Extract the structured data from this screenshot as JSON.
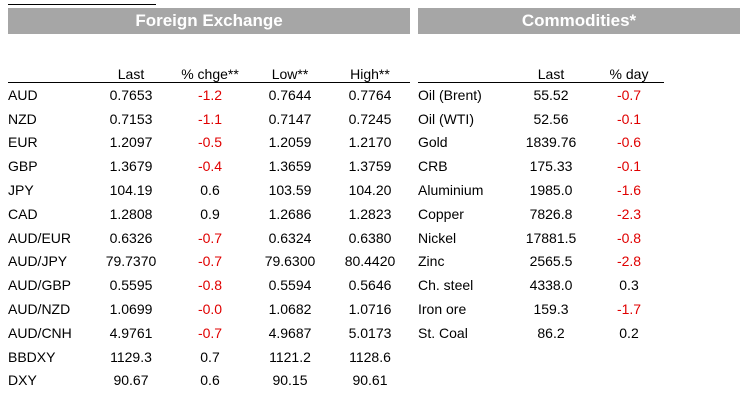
{
  "fx": {
    "title": "Foreign Exchange",
    "headers": [
      "Last",
      "% chge**",
      "Low**",
      "High**"
    ],
    "rows": [
      {
        "label": "AUD",
        "last": "0.7653",
        "chg": "-1.2",
        "low": "0.7644",
        "high": "0.7764"
      },
      {
        "label": "NZD",
        "last": "0.7153",
        "chg": "-1.1",
        "low": "0.7147",
        "high": "0.7245"
      },
      {
        "label": "EUR",
        "last": "1.2097",
        "chg": "-0.5",
        "low": "1.2059",
        "high": "1.2170"
      },
      {
        "label": "GBP",
        "last": "1.3679",
        "chg": "-0.4",
        "low": "1.3659",
        "high": "1.3759"
      },
      {
        "label": "JPY",
        "last": "104.19",
        "chg": "0.6",
        "low": "103.59",
        "high": "104.20"
      },
      {
        "label": "CAD",
        "last": "1.2808",
        "chg": "0.9",
        "low": "1.2686",
        "high": "1.2823"
      },
      {
        "label": "AUD/EUR",
        "last": "0.6326",
        "chg": "-0.7",
        "low": "0.6324",
        "high": "0.6380"
      },
      {
        "label": "AUD/JPY",
        "last": "79.7370",
        "chg": "-0.7",
        "low": "79.6300",
        "high": "80.4420"
      },
      {
        "label": "AUD/GBP",
        "last": "0.5595",
        "chg": "-0.8",
        "low": "0.5594",
        "high": "0.5646"
      },
      {
        "label": "AUD/NZD",
        "last": "1.0699",
        "chg": "-0.0",
        "low": "1.0682",
        "high": "1.0716"
      },
      {
        "label": "AUD/CNH",
        "last": "4.9761",
        "chg": "-0.7",
        "low": "4.9687",
        "high": "5.0173"
      },
      {
        "label": "BBDXY",
        "last": "1129.3",
        "chg": "0.7",
        "low": "1121.2",
        "high": "1128.6"
      },
      {
        "label": "DXY",
        "last": "90.67",
        "chg": "0.6",
        "low": "90.15",
        "high": "90.61"
      }
    ]
  },
  "commodities": {
    "title": "Commodities*",
    "headers": [
      "Last",
      "% day"
    ],
    "rows": [
      {
        "label": "Oil (Brent)",
        "last": "55.52",
        "chg": "-0.7"
      },
      {
        "label": "Oil (WTI)",
        "last": "52.56",
        "chg": "-0.1"
      },
      {
        "label": "Gold",
        "last": "1839.76",
        "chg": "-0.6"
      },
      {
        "label": "CRB",
        "last": "175.33",
        "chg": "-0.1"
      },
      {
        "label": "Aluminium",
        "last": "1985.0",
        "chg": "-1.6"
      },
      {
        "label": "Copper",
        "last": "7826.8",
        "chg": "-2.3"
      },
      {
        "label": "Nickel",
        "last": "17881.5",
        "chg": "-0.8"
      },
      {
        "label": "Zinc",
        "last": "2565.5",
        "chg": "-2.8"
      },
      {
        "label": "Ch. steel",
        "last": "4338.0",
        "chg": "0.3"
      },
      {
        "label": "Iron ore",
        "last": "159.3",
        "chg": "-1.7"
      },
      {
        "label": "St. Coal",
        "last": "86.2",
        "chg": "0.2"
      }
    ]
  },
  "colors": {
    "banner": "#a6a6a6",
    "negative": "#e00000"
  }
}
